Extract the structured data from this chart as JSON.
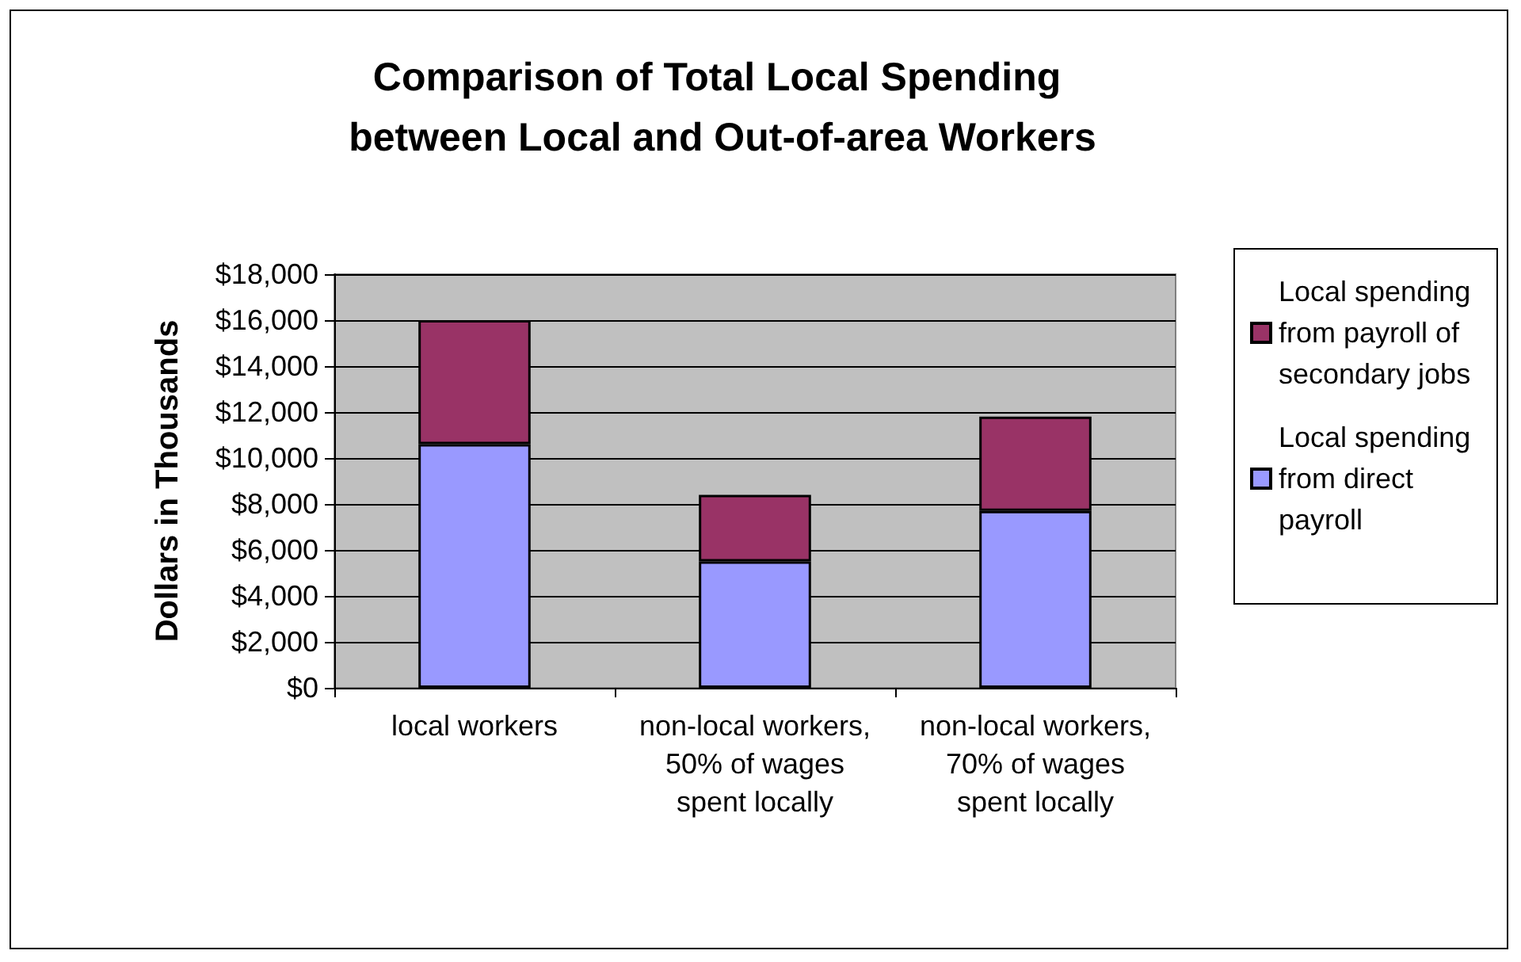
{
  "chart_data": {
    "type": "bar",
    "stacked": true,
    "title": "Comparison of Total Local Spending between Local and Out-of-area Workers",
    "ylabel": "Dollars in Thousands",
    "categories": [
      "local workers",
      "non-local workers, 50% of wages spent locally",
      "non-local workers, 70% of wages spent locally"
    ],
    "series": [
      {
        "name": "Local spending from direct payroll",
        "color": "#9999ff",
        "values": [
          10600,
          5500,
          7700
        ]
      },
      {
        "name": "Local spending from payroll of secondary jobs",
        "color": "#993366",
        "values": [
          5400,
          2900,
          4100
        ]
      }
    ],
    "ylim": [
      0,
      18000
    ],
    "yticks": [
      {
        "value": 0,
        "label": "$0"
      },
      {
        "value": 2000,
        "label": "$2,000"
      },
      {
        "value": 4000,
        "label": "$4,000"
      },
      {
        "value": 6000,
        "label": "$6,000"
      },
      {
        "value": 8000,
        "label": "$8,000"
      },
      {
        "value": 10000,
        "label": "$10,000"
      },
      {
        "value": 12000,
        "label": "$12,000"
      },
      {
        "value": 14000,
        "label": "$14,000"
      },
      {
        "value": 16000,
        "label": "$16,000"
      },
      {
        "value": 18000,
        "label": "$18,000"
      }
    ],
    "grid": "y",
    "legend": "right"
  }
}
